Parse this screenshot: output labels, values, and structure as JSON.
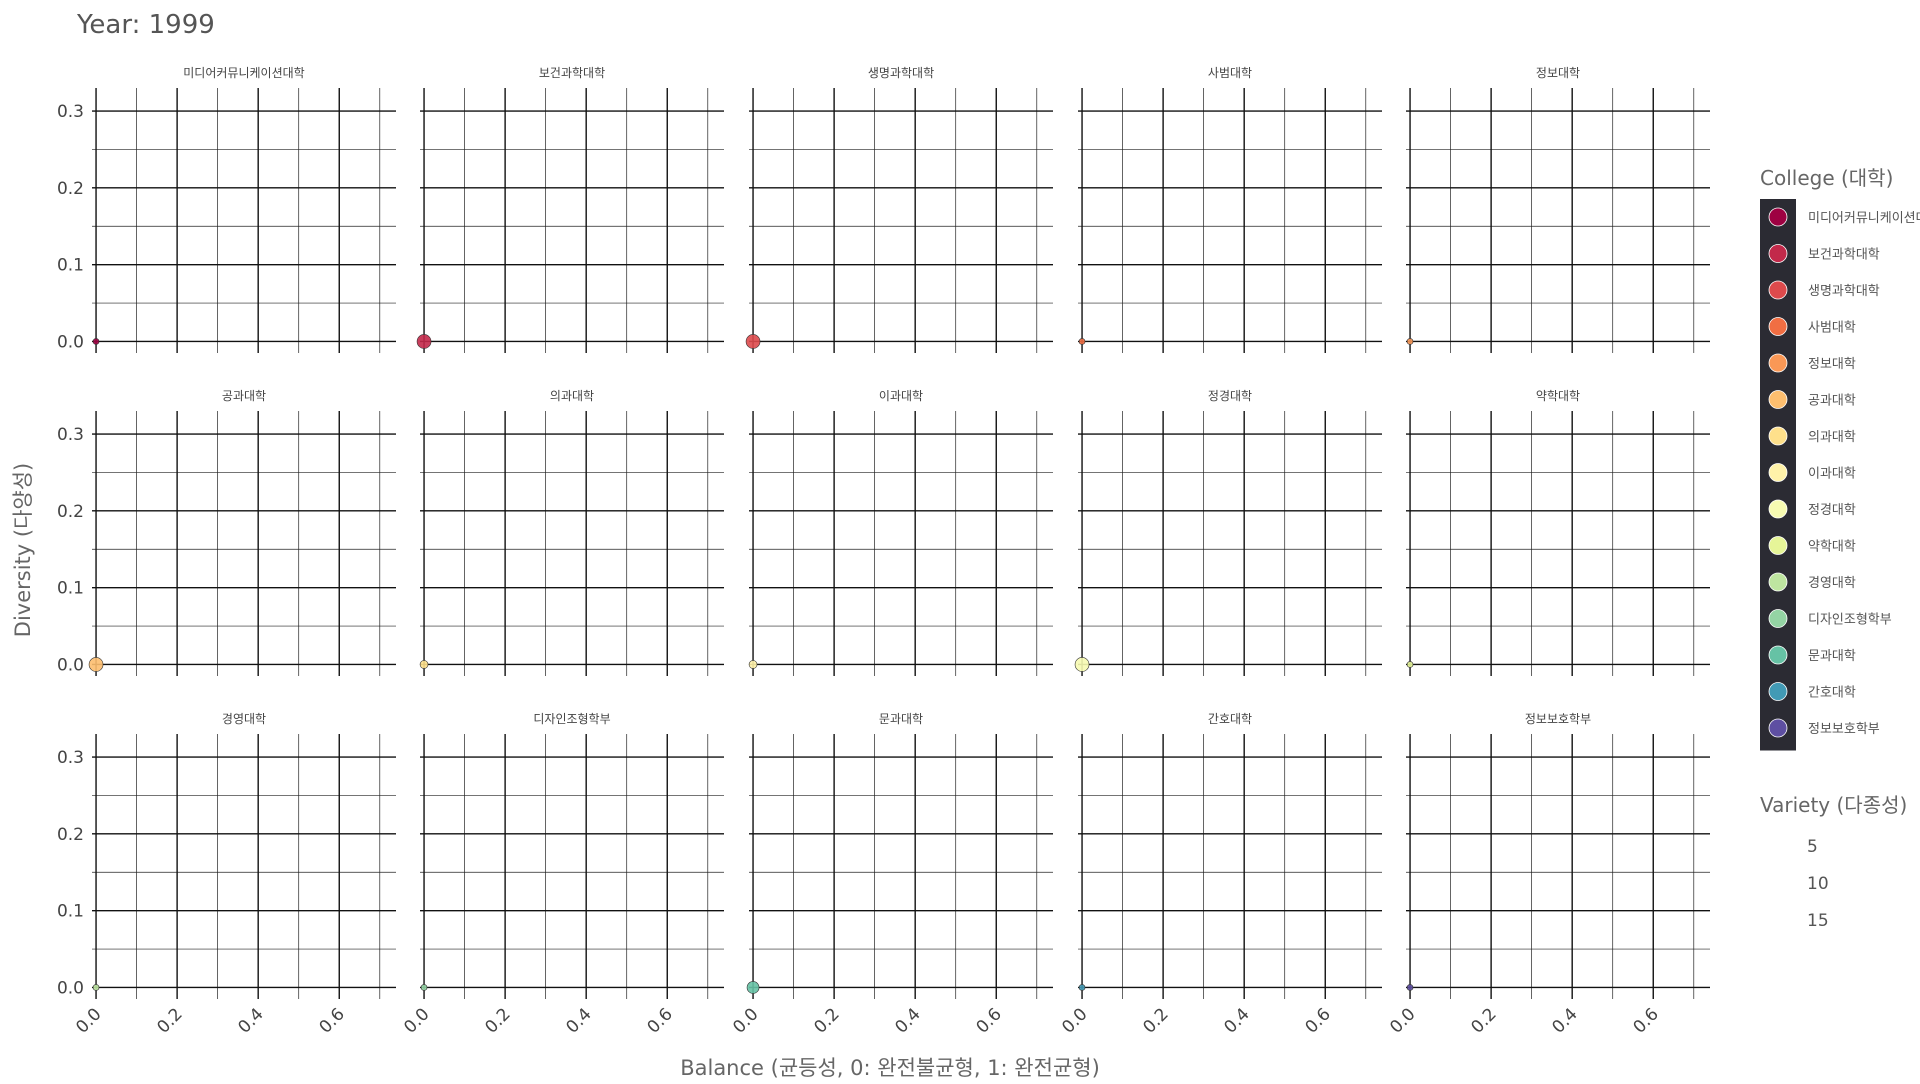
{
  "chart_data": {
    "type": "scatter",
    "title": "Year: 1999",
    "xlabel": "Balance (균등성, 0: 완전불균형, 1: 완전균형)",
    "ylabel": "Diversity (다양성)",
    "xlim": [
      -0.01,
      0.74
    ],
    "ylim": [
      -0.015,
      0.33
    ],
    "x_ticks": [
      0.0,
      0.2,
      0.4,
      0.6
    ],
    "x_tick_labels": [
      "0.0",
      "0.2",
      "0.4",
      "0.6"
    ],
    "y_ticks": [
      0.0,
      0.1,
      0.2,
      0.3
    ],
    "y_tick_labels": [
      "0.0",
      "0.1",
      "0.2",
      "0.3"
    ],
    "grid": true,
    "facet_rows": 3,
    "facet_cols": 5,
    "panels": [
      {
        "label": "미디어커뮤니케이션대학",
        "color": "#9e0142",
        "points": [
          {
            "x": 0.0,
            "y": 0.0,
            "size": 1
          }
        ]
      },
      {
        "label": "보건과학대학",
        "color": "#c2294a",
        "points": [
          {
            "x": 0.0,
            "y": 0.0,
            "size": 5
          }
        ]
      },
      {
        "label": "생명과학대학",
        "color": "#dd4a4c",
        "points": [
          {
            "x": 0.0,
            "y": 0.0,
            "size": 5
          }
        ]
      },
      {
        "label": "사범대학",
        "color": "#f16e43",
        "points": [
          {
            "x": 0.0,
            "y": 0.0,
            "size": 1
          }
        ]
      },
      {
        "label": "정보대학",
        "color": "#fa9856",
        "points": [
          {
            "x": 0.0,
            "y": 0.0,
            "size": 1
          }
        ]
      },
      {
        "label": "공과대학",
        "color": "#fdbe6f",
        "points": [
          {
            "x": 0.0,
            "y": 0.0,
            "size": 5
          }
        ]
      },
      {
        "label": "의과대학",
        "color": "#fee08b",
        "points": [
          {
            "x": 0.0,
            "y": 0.0,
            "size": 2
          }
        ]
      },
      {
        "label": "이과대학",
        "color": "#fff2a9",
        "points": [
          {
            "x": 0.0,
            "y": 0.0,
            "size": 2
          }
        ]
      },
      {
        "label": "정경대학",
        "color": "#f7fbb2",
        "points": [
          {
            "x": 0.0,
            "y": 0.0,
            "size": 5
          }
        ]
      },
      {
        "label": "약학대학",
        "color": "#e6f598",
        "points": [
          {
            "x": 0.0,
            "y": 0.0,
            "size": 1
          }
        ]
      },
      {
        "label": "경영대학",
        "color": "#bee5a0",
        "points": [
          {
            "x": 0.0,
            "y": 0.0,
            "size": 1
          }
        ]
      },
      {
        "label": "디자인조형학부",
        "color": "#94d4a4",
        "points": [
          {
            "x": 0.0,
            "y": 0.0,
            "size": 1
          }
        ]
      },
      {
        "label": "문과대학",
        "color": "#66c2a5",
        "points": [
          {
            "x": 0.0,
            "y": 0.0,
            "size": 4
          }
        ]
      },
      {
        "label": "간호대학",
        "color": "#429ab5",
        "points": [
          {
            "x": 0.0,
            "y": 0.0,
            "size": 1
          }
        ]
      },
      {
        "label": "정보보호학부",
        "color": "#5e4fa2",
        "points": [
          {
            "x": 0.0,
            "y": 0.0,
            "size": 1
          }
        ]
      }
    ],
    "legend": {
      "placement": "right",
      "color_title": "College (대학)",
      "color_entries": [
        {
          "label": "미디어커뮤니케이션대학",
          "color": "#9e0142"
        },
        {
          "label": "보건과학대학",
          "color": "#c2294a"
        },
        {
          "label": "생명과학대학",
          "color": "#dd4a4c"
        },
        {
          "label": "사범대학",
          "color": "#f16e43"
        },
        {
          "label": "정보대학",
          "color": "#fa9856"
        },
        {
          "label": "공과대학",
          "color": "#fdbe6f"
        },
        {
          "label": "의과대학",
          "color": "#fee08b"
        },
        {
          "label": "이과대학",
          "color": "#fff2a9"
        },
        {
          "label": "정경대학",
          "color": "#f7fbb2"
        },
        {
          "label": "약학대학",
          "color": "#e6f598"
        },
        {
          "label": "경영대학",
          "color": "#bee5a0"
        },
        {
          "label": "디자인조형학부",
          "color": "#94d4a4"
        },
        {
          "label": "문과대학",
          "color": "#66c2a5"
        },
        {
          "label": "간호대학",
          "color": "#429ab5"
        },
        {
          "label": "정보보호학부",
          "color": "#5e4fa2"
        }
      ],
      "size_title": "Variety (다종성)",
      "size_entries": [
        5,
        10,
        15
      ]
    }
  }
}
